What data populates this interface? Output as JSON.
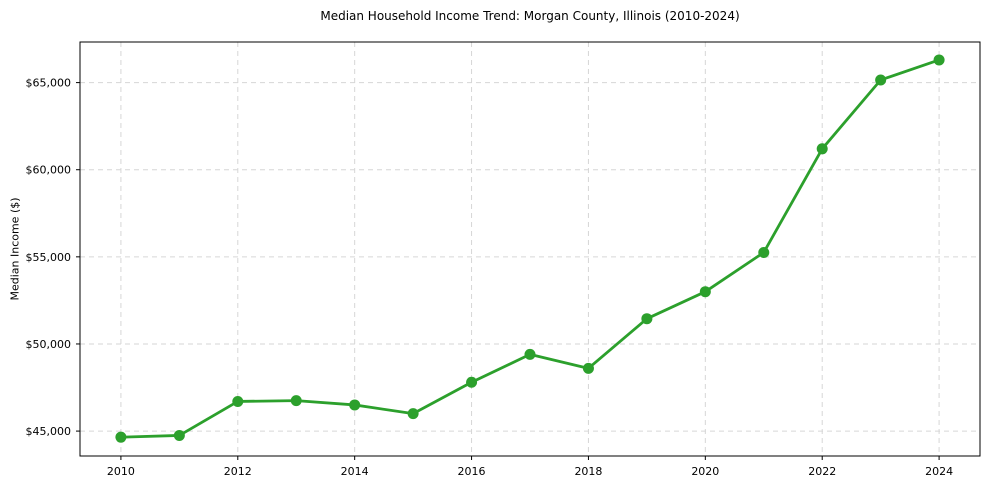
{
  "chart_data": {
    "type": "line",
    "title": "Median Household Income Trend: Morgan County, Illinois (2010-2024)",
    "xlabel": "",
    "ylabel": "Median Income ($)",
    "x": [
      2010,
      2011,
      2012,
      2013,
      2014,
      2015,
      2016,
      2017,
      2018,
      2019,
      2020,
      2021,
      2022,
      2023,
      2024
    ],
    "values": [
      44650,
      44750,
      46700,
      46750,
      46500,
      46000,
      47800,
      49400,
      48600,
      51450,
      53000,
      55250,
      61200,
      65150,
      66300
    ],
    "xticks": [
      2010,
      2012,
      2014,
      2016,
      2018,
      2020,
      2022,
      2024
    ],
    "xtick_labels": [
      "2010",
      "2012",
      "2014",
      "2016",
      "2018",
      "2020",
      "2022",
      "2024"
    ],
    "yticks": [
      45000,
      50000,
      55000,
      60000,
      65000
    ],
    "ytick_labels": [
      "$45,000",
      "$50,000",
      "$55,000",
      "$60,000",
      "$65,000"
    ],
    "xlim": [
      2009.3,
      2024.7
    ],
    "ylim": [
      43570,
      67330
    ],
    "line_color": "#2ca02c",
    "marker_color": "#2ca02c",
    "marker": "o",
    "grid": true,
    "grid_color": "#d6d6d6",
    "grid_style": "dashed",
    "axis_color": "#000000",
    "legend": "none"
  }
}
